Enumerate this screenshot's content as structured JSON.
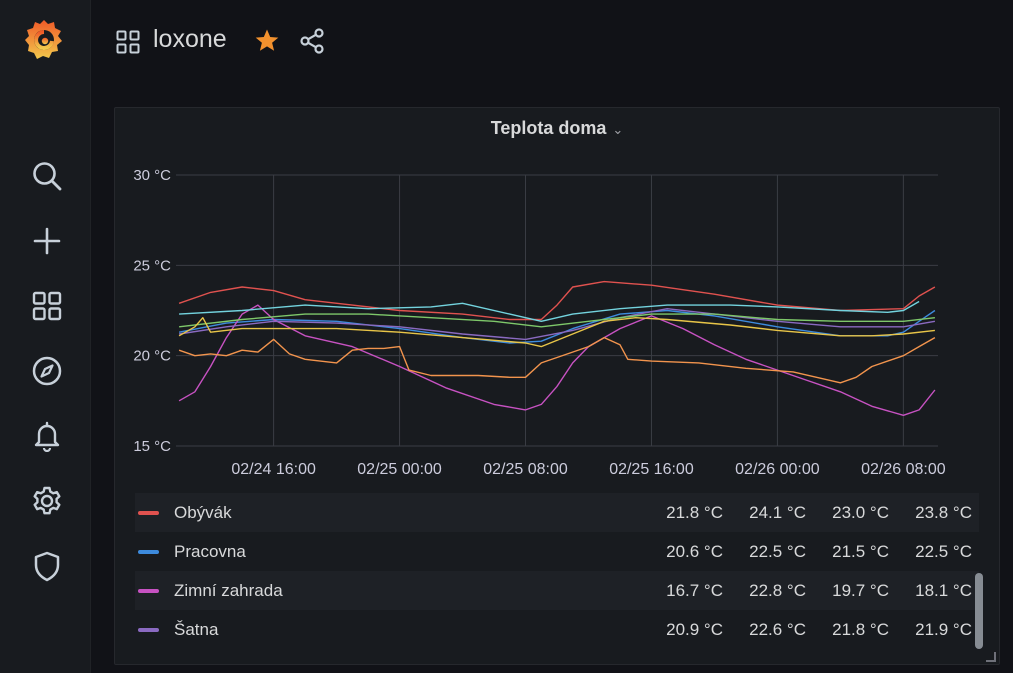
{
  "header": {
    "title": "loxone",
    "starred": true
  },
  "sidebar": {
    "icons": [
      "grafana-logo",
      "search-icon",
      "plus-icon",
      "dashboards-icon",
      "explore-compass-icon",
      "alerting-bell-icon",
      "settings-gear-icon",
      "shield-icon"
    ]
  },
  "panel": {
    "title": "Teplota doma"
  },
  "legend": {
    "rows": [
      {
        "name": "Obývák",
        "color": "#e0524f",
        "v1": "21.8 °C",
        "v2": "24.1 °C",
        "v3": "23.0 °C",
        "v4": "23.8 °C"
      },
      {
        "name": "Pracovna",
        "color": "#3d8bdd",
        "v1": "20.6 °C",
        "v2": "22.5 °C",
        "v3": "21.5 °C",
        "v4": "22.5 °C"
      },
      {
        "name": "Zimní zahrada",
        "color": "#c752c2",
        "v1": "16.7 °C",
        "v2": "22.8 °C",
        "v3": "19.7 °C",
        "v4": "18.1 °C"
      },
      {
        "name": "Šatna",
        "color": "#8a6ac1",
        "v1": "20.9 °C",
        "v2": "22.6 °C",
        "v3": "21.8 °C",
        "v4": "21.9 °C"
      }
    ]
  },
  "chart_data": {
    "type": "line",
    "ylim": [
      15,
      30
    ],
    "y_ticks": [
      15,
      20,
      25,
      30
    ],
    "y_tick_labels": [
      "15 °C",
      "20 °C",
      "25 °C",
      "30 °C"
    ],
    "x_ticks": [
      6.0,
      14.0,
      22.0,
      30.0,
      38.0,
      46.0
    ],
    "x_tick_labels": [
      "02/24 16:00",
      "02/25 00:00",
      "02/25 08:00",
      "02/25 16:00",
      "02/26 00:00",
      "02/26 08:00"
    ],
    "xlim": [
      -0.2,
      48.2
    ],
    "grid": true,
    "series": [
      {
        "name": "Obývák",
        "color": "#e0524f",
        "points": [
          [
            0,
            22.9
          ],
          [
            2,
            23.5
          ],
          [
            4,
            23.8
          ],
          [
            6,
            23.6
          ],
          [
            8,
            23.1
          ],
          [
            11,
            22.8
          ],
          [
            14,
            22.5
          ],
          [
            18,
            22.3
          ],
          [
            21,
            22.0
          ],
          [
            23,
            22.0
          ],
          [
            24,
            22.8
          ],
          [
            25,
            23.8
          ],
          [
            27,
            24.1
          ],
          [
            30,
            23.9
          ],
          [
            34,
            23.4
          ],
          [
            38,
            22.8
          ],
          [
            42,
            22.5
          ],
          [
            46,
            22.6
          ],
          [
            47,
            23.3
          ],
          [
            48,
            23.8
          ]
        ]
      },
      {
        "name": "Pracovna",
        "color": "#3d8bdd",
        "points": [
          [
            0,
            21.3
          ],
          [
            3,
            21.8
          ],
          [
            6,
            22.0
          ],
          [
            10,
            21.9
          ],
          [
            14,
            21.5
          ],
          [
            18,
            21.0
          ],
          [
            21,
            20.7
          ],
          [
            23,
            20.8
          ],
          [
            25,
            21.5
          ],
          [
            28,
            22.3
          ],
          [
            31,
            22.5
          ],
          [
            34,
            22.2
          ],
          [
            38,
            21.6
          ],
          [
            42,
            21.1
          ],
          [
            45,
            21.1
          ],
          [
            46,
            21.3
          ],
          [
            47,
            21.9
          ],
          [
            48,
            22.5
          ]
        ]
      },
      {
        "name": "Zimní zahrada",
        "color": "#c752c2",
        "points": [
          [
            0,
            17.5
          ],
          [
            1,
            18.0
          ],
          [
            2,
            19.4
          ],
          [
            3,
            21.0
          ],
          [
            4,
            22.3
          ],
          [
            5,
            22.8
          ],
          [
            6,
            22.0
          ],
          [
            8,
            21.1
          ],
          [
            11,
            20.5
          ],
          [
            14,
            19.4
          ],
          [
            17,
            18.2
          ],
          [
            20,
            17.3
          ],
          [
            22,
            17.0
          ],
          [
            23,
            17.3
          ],
          [
            24,
            18.3
          ],
          [
            25,
            19.6
          ],
          [
            26,
            20.5
          ],
          [
            28,
            21.5
          ],
          [
            30,
            22.2
          ],
          [
            32,
            21.5
          ],
          [
            34,
            20.6
          ],
          [
            36,
            19.8
          ],
          [
            38,
            19.2
          ],
          [
            40,
            18.6
          ],
          [
            42,
            18.0
          ],
          [
            44,
            17.2
          ],
          [
            46,
            16.7
          ],
          [
            47,
            17.0
          ],
          [
            48,
            18.1
          ]
        ]
      },
      {
        "name": "Šatna",
        "color": "#8a6ac1",
        "points": [
          [
            0,
            21.2
          ],
          [
            3,
            21.6
          ],
          [
            6,
            21.9
          ],
          [
            10,
            21.8
          ],
          [
            14,
            21.6
          ],
          [
            18,
            21.2
          ],
          [
            22,
            20.9
          ],
          [
            25,
            21.4
          ],
          [
            28,
            22.1
          ],
          [
            31,
            22.6
          ],
          [
            34,
            22.3
          ],
          [
            38,
            21.9
          ],
          [
            42,
            21.6
          ],
          [
            46,
            21.6
          ],
          [
            48,
            21.9
          ]
        ]
      },
      {
        "name": "",
        "color": "#73d3de",
        "points": [
          [
            0,
            22.3
          ],
          [
            4,
            22.5
          ],
          [
            8,
            22.8
          ],
          [
            12,
            22.6
          ],
          [
            16,
            22.7
          ],
          [
            18,
            22.9
          ],
          [
            21,
            22.3
          ],
          [
            23,
            21.9
          ],
          [
            25,
            22.3
          ],
          [
            28,
            22.6
          ],
          [
            31,
            22.8
          ],
          [
            35,
            22.8
          ],
          [
            38,
            22.7
          ],
          [
            42,
            22.5
          ],
          [
            45,
            22.4
          ],
          [
            46,
            22.5
          ],
          [
            47,
            23.0
          ]
        ]
      },
      {
        "name": "",
        "color": "#7ec86a",
        "points": [
          [
            0,
            21.6
          ],
          [
            4,
            22.0
          ],
          [
            8,
            22.3
          ],
          [
            12,
            22.3
          ],
          [
            16,
            22.1
          ],
          [
            20,
            21.9
          ],
          [
            23,
            21.6
          ],
          [
            26,
            21.9
          ],
          [
            30,
            22.3
          ],
          [
            34,
            22.3
          ],
          [
            38,
            22.0
          ],
          [
            42,
            21.9
          ],
          [
            46,
            21.9
          ],
          [
            48,
            22.1
          ]
        ]
      },
      {
        "name": "",
        "color": "#e8c548",
        "points": [
          [
            0,
            21.1
          ],
          [
            1,
            21.6
          ],
          [
            1.5,
            22.1
          ],
          [
            2,
            21.3
          ],
          [
            4,
            21.5
          ],
          [
            6,
            21.5
          ],
          [
            10,
            21.5
          ],
          [
            14,
            21.3
          ],
          [
            18,
            21.0
          ],
          [
            22,
            20.7
          ],
          [
            23,
            20.5
          ],
          [
            25,
            21.2
          ],
          [
            27,
            21.9
          ],
          [
            29,
            22.1
          ],
          [
            31,
            22.0
          ],
          [
            35,
            21.7
          ],
          [
            38,
            21.4
          ],
          [
            42,
            21.1
          ],
          [
            44,
            21.1
          ],
          [
            46,
            21.2
          ],
          [
            48,
            21.4
          ]
        ]
      },
      {
        "name": "",
        "color": "#f2944d",
        "points": [
          [
            0,
            20.3
          ],
          [
            1,
            20.0
          ],
          [
            2,
            20.1
          ],
          [
            3,
            20.0
          ],
          [
            4,
            20.3
          ],
          [
            5,
            20.2
          ],
          [
            6,
            20.9
          ],
          [
            7,
            20.1
          ],
          [
            8,
            19.8
          ],
          [
            10,
            19.6
          ],
          [
            11,
            20.3
          ],
          [
            12,
            20.4
          ],
          [
            13,
            20.4
          ],
          [
            14,
            20.5
          ],
          [
            14.6,
            19.2
          ],
          [
            16,
            18.9
          ],
          [
            19,
            18.9
          ],
          [
            21,
            18.8
          ],
          [
            22,
            18.8
          ],
          [
            23,
            19.6
          ],
          [
            24,
            19.9
          ],
          [
            26,
            20.5
          ],
          [
            27,
            21.0
          ],
          [
            28,
            20.6
          ],
          [
            28.5,
            19.8
          ],
          [
            30,
            19.7
          ],
          [
            33,
            19.6
          ],
          [
            36,
            19.3
          ],
          [
            39,
            19.1
          ],
          [
            42,
            18.5
          ],
          [
            43,
            18.8
          ],
          [
            44,
            19.4
          ],
          [
            46,
            20.0
          ],
          [
            47,
            20.5
          ],
          [
            48,
            21.0
          ]
        ]
      }
    ]
  }
}
